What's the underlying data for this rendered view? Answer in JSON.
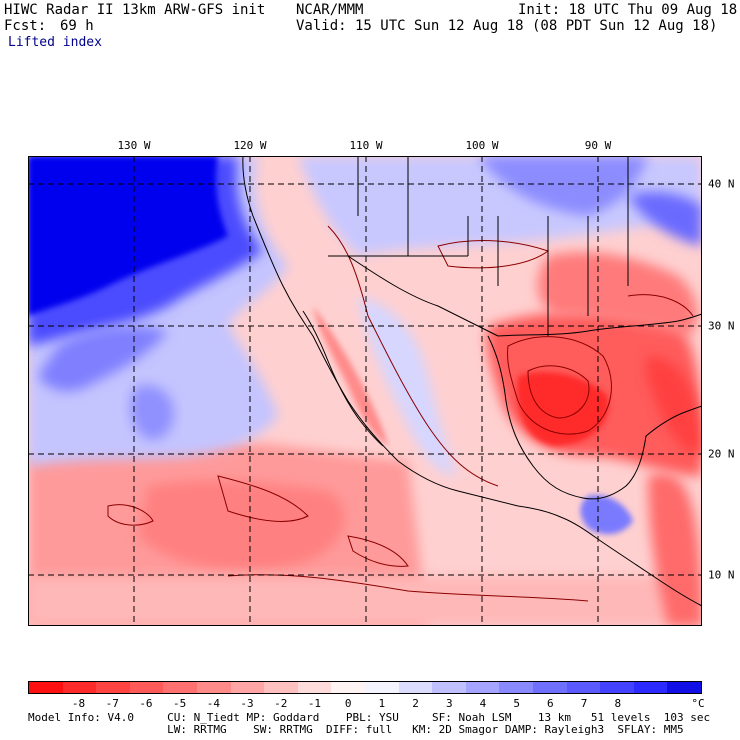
{
  "header": {
    "title": "HIWC Radar II 13km ARW-GFS init",
    "org": "NCAR/MMM",
    "init": "Init: 18 UTC Thu 09 Aug 18",
    "fcst_label": "Fcst:",
    "fcst_value": "69 h",
    "valid": "Valid: 15 UTC Sun 12 Aug 18 (08 PDT Sun 12 Aug 18)",
    "field": "Lifted index"
  },
  "map": {
    "lon_labels": [
      "130 W",
      "120 W",
      "110 W",
      "100 W",
      "90 W"
    ],
    "lat_labels": [
      "40 N",
      "30 N",
      "20 N",
      "10 N"
    ]
  },
  "colorbar": {
    "colors": [
      "#ff1010",
      "#ff2b2b",
      "#ff4242",
      "#ff5a5a",
      "#ff7070",
      "#ff8a8a",
      "#ffa5a5",
      "#ffc0c0",
      "#ffdcdc",
      "#fff4f4",
      "#f4f4ff",
      "#dcdcff",
      "#c0c0ff",
      "#a5a5ff",
      "#8a8aff",
      "#7070ff",
      "#5a5aff",
      "#4242ff",
      "#2b2bff",
      "#1010e6"
    ],
    "tick_labels": [
      "-8",
      "-7",
      "-6",
      "-5",
      "-4",
      "-3",
      "-2",
      "-1",
      "0",
      "1",
      "2",
      "3",
      "4",
      "5",
      "6",
      "7",
      "8",
      "°C"
    ]
  },
  "footer": {
    "line1": "Model Info: V4.0     CU: N_Tiedt MP: Goddard    PBL: YSU     SF: Noah LSM    13 km   51 levels  103 sec",
    "line2": "                     LW: RRTMG    SW: RRTMG  DIFF: full   KM: 2D Smagor DAMP: Rayleigh3  SFLAY: MM5"
  }
}
